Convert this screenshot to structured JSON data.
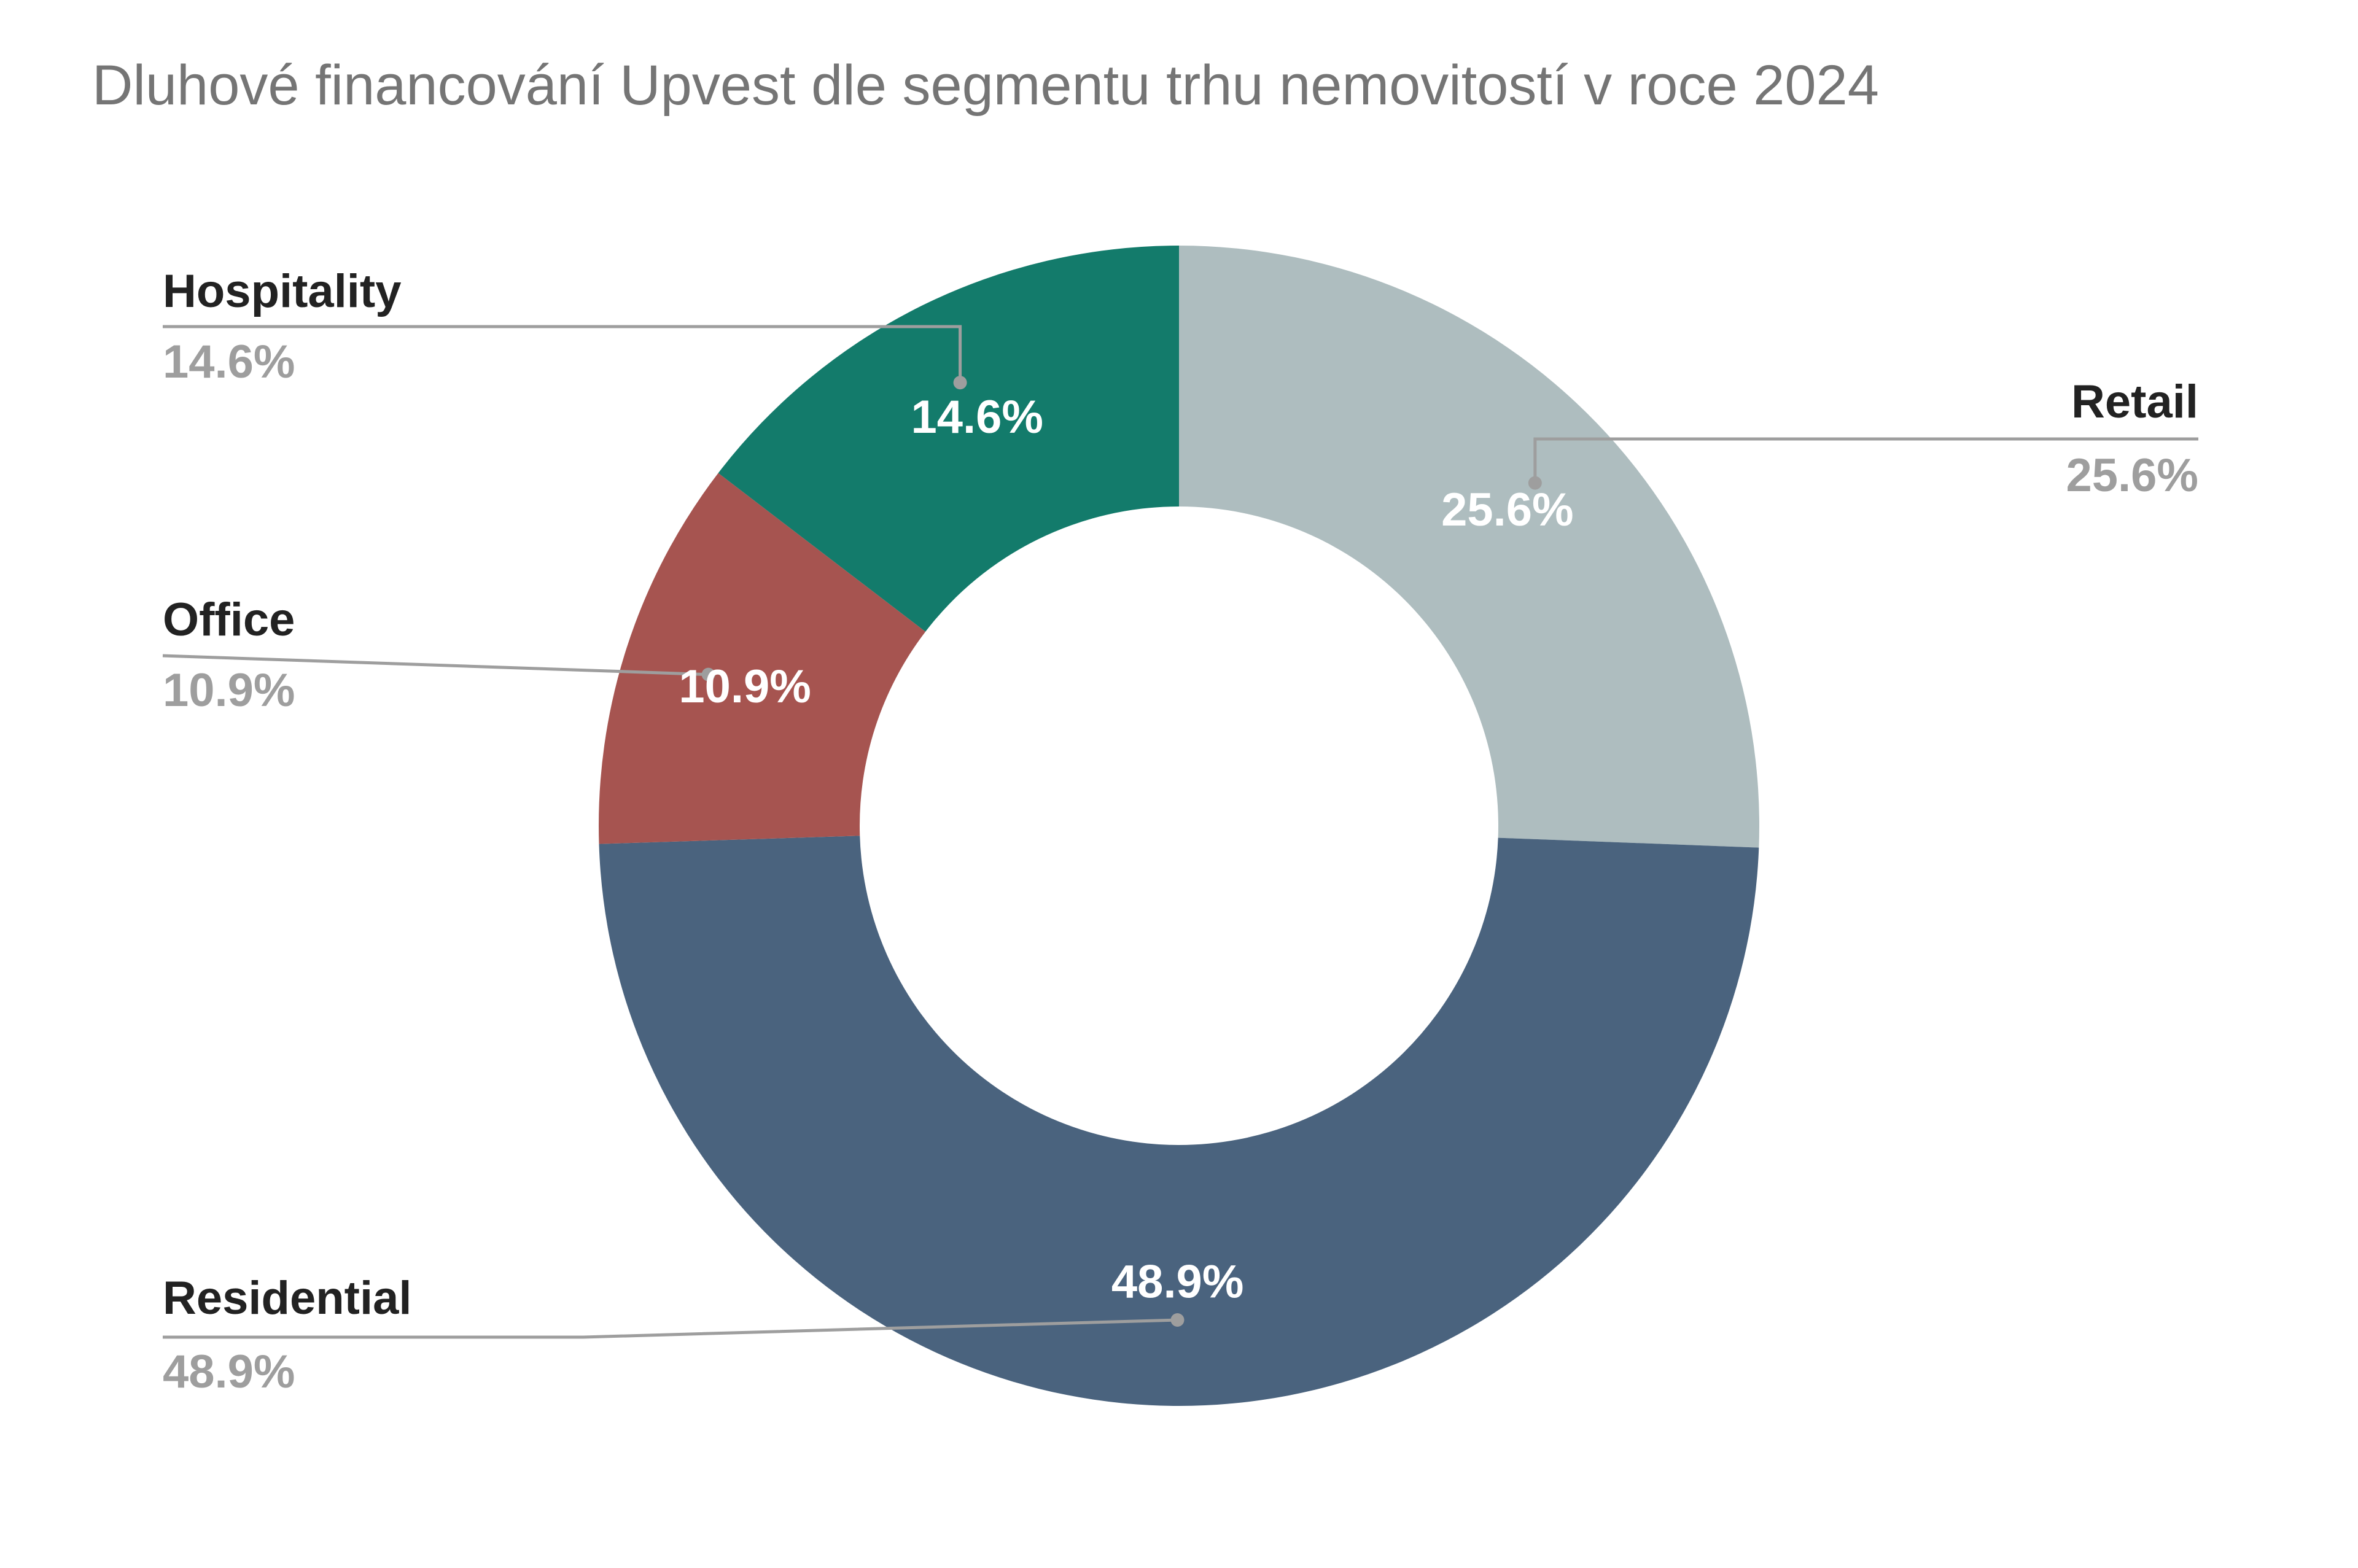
{
  "chart_data": {
    "type": "pie",
    "style": "donut",
    "title": "Dluhové financování Upvest dle segmentu trhu nemovitostí v roce 2024",
    "legend": "none",
    "slices": [
      {
        "label": "Retail",
        "value": 25.6,
        "display": "25.6%",
        "color": "#aebdbf"
      },
      {
        "label": "Residential",
        "value": 48.9,
        "display": "48.9%",
        "color": "#4a637e"
      },
      {
        "label": "Office",
        "value": 10.9,
        "display": "10.9%",
        "color": "#a65450"
      },
      {
        "label": "Hospitality",
        "value": 14.6,
        "display": "14.6%",
        "color": "#137b6b"
      }
    ]
  },
  "colors": {
    "title": "#757575",
    "label": "#222222",
    "percent_outside": "#9e9e9e",
    "percent_inside": "#ffffff",
    "leader_line": "#9e9e9e"
  }
}
